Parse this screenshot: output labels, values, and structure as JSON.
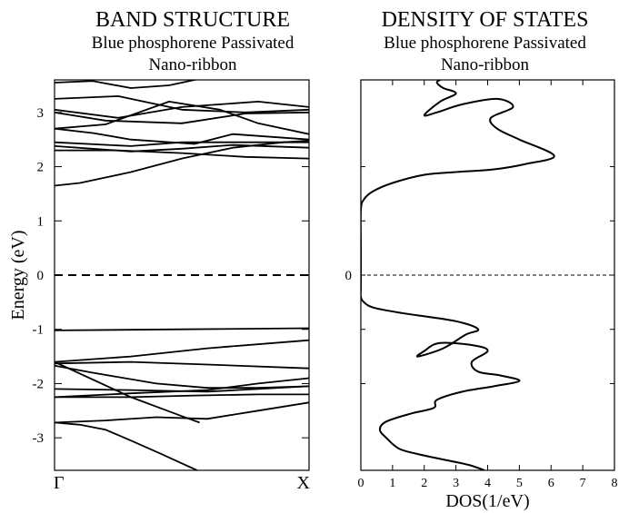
{
  "chart_data": [
    {
      "type": "line",
      "title": "BAND STRUCTURE",
      "subtitle_line1": "Blue phosphorene Passivated",
      "subtitle_line2": "Nano-ribbon",
      "xlabel": "",
      "ylabel": "Energy (eV)",
      "xlim": [
        0,
        1
      ],
      "ylim": [
        -3.6,
        3.6
      ],
      "x_tick_labels": [
        {
          "x": 0,
          "label": "Γ"
        },
        {
          "x": 1,
          "label": "X"
        }
      ],
      "y_tick_labels": [
        "-3",
        "-2",
        "-1",
        "0",
        "1",
        "2",
        "3"
      ],
      "fermi_level": 0,
      "series": [
        {
          "x": [
            0,
            0.1,
            0.3,
            0.5,
            0.7,
            0.9,
            1
          ],
          "y": [
            1.65,
            1.7,
            1.9,
            2.15,
            2.35,
            2.45,
            2.48
          ]
        },
        {
          "x": [
            0,
            0.25,
            0.5,
            0.75,
            1
          ],
          "y": [
            2.3,
            2.3,
            2.25,
            2.18,
            2.15
          ]
        },
        {
          "x": [
            0,
            0.3,
            0.5,
            0.7,
            1
          ],
          "y": [
            2.38,
            2.28,
            2.33,
            2.4,
            2.35
          ]
        },
        {
          "x": [
            0,
            0.3,
            0.5,
            0.7,
            1
          ],
          "y": [
            2.45,
            2.38,
            2.45,
            2.45,
            2.45
          ]
        },
        {
          "x": [
            0,
            0.15,
            0.3,
            0.55,
            0.7,
            1
          ],
          "y": [
            2.7,
            2.62,
            2.5,
            2.42,
            2.6,
            2.5
          ]
        },
        {
          "x": [
            0,
            0.2,
            0.45,
            0.65,
            0.8,
            1
          ],
          "y": [
            2.7,
            2.78,
            3.2,
            3.05,
            2.8,
            2.6
          ]
        },
        {
          "x": [
            0,
            0.2,
            0.5,
            0.75,
            1
          ],
          "y": [
            3.0,
            2.85,
            2.8,
            2.98,
            3.0
          ]
        },
        {
          "x": [
            0,
            0.25,
            0.5,
            0.8,
            1
          ],
          "y": [
            3.05,
            2.9,
            3.1,
            3.2,
            3.1
          ]
        },
        {
          "x": [
            0,
            0.25,
            0.5,
            0.75,
            1
          ],
          "y": [
            3.25,
            3.3,
            3.05,
            3.0,
            3.05
          ]
        },
        {
          "x": [
            0,
            0.15,
            0.3,
            0.45,
            0.6
          ],
          "y": [
            3.55,
            3.58,
            3.45,
            3.5,
            3.65
          ]
        },
        {
          "x": [
            0,
            0.5,
            1
          ],
          "y": [
            -1.02,
            -1.0,
            -0.98
          ]
        },
        {
          "x": [
            0,
            0.3,
            0.6,
            1
          ],
          "y": [
            -1.6,
            -1.5,
            -1.35,
            -1.2
          ]
        },
        {
          "x": [
            0,
            0.3,
            0.6,
            1
          ],
          "y": [
            -1.63,
            -1.6,
            -1.65,
            -1.72
          ]
        },
        {
          "x": [
            0,
            0.15,
            0.4,
            0.6,
            0.8,
            1
          ],
          "y": [
            -1.67,
            -1.8,
            -2.0,
            -2.08,
            -2.08,
            -2.05
          ]
        },
        {
          "x": [
            0,
            0.3,
            0.6,
            0.8,
            1
          ],
          "y": [
            -2.1,
            -2.12,
            -2.15,
            -2.1,
            -2.05
          ]
        },
        {
          "x": [
            0,
            0.3,
            0.6,
            0.8,
            1
          ],
          "y": [
            -2.25,
            -2.18,
            -2.12,
            -2.0,
            -1.9
          ]
        },
        {
          "x": [
            0,
            0.3,
            0.55,
            0.8,
            1
          ],
          "y": [
            -2.25,
            -2.25,
            -2.22,
            -2.2,
            -2.2
          ]
        },
        {
          "x": [
            0,
            0.2,
            0.4,
            0.6,
            0.8,
            1
          ],
          "y": [
            -2.72,
            -2.68,
            -2.62,
            -2.65,
            -2.5,
            -2.35
          ]
        },
        {
          "x": [
            0,
            0.1,
            0.2,
            0.3,
            0.42,
            0.56
          ],
          "y": [
            -2.72,
            -2.76,
            -2.85,
            -3.05,
            -3.3,
            -3.6
          ]
        },
        {
          "x": [
            0,
            0.3,
            0.5,
            0.57
          ],
          "y": [
            -1.6,
            -2.25,
            -2.6,
            -2.72
          ]
        }
      ]
    },
    {
      "type": "line",
      "title": "DENSITY OF STATES",
      "subtitle_line1": "Blue phosphorene Passivated",
      "subtitle_line2": "Nano-ribbon",
      "xlabel": "DOS(1/eV)",
      "ylabel": "",
      "xlim": [
        0,
        8
      ],
      "ylim": [
        -3.6,
        3.6
      ],
      "x_ticks": [
        0,
        1,
        2,
        3,
        4,
        5,
        6,
        7,
        8
      ],
      "y_tick_labels": [
        "0"
      ],
      "fermi_level": 0,
      "series": [
        {
          "x": [
            3.9,
            3.4,
            2.6,
            1.8,
            1.2,
            0.8,
            0.6,
            0.8,
            1.6,
            2.3,
            2.4,
            3.2,
            4.2,
            5.0,
            4.4,
            3.7,
            3.5,
            4.0,
            3.6,
            2.5,
            2.0,
            1.8,
            2.6,
            3.3,
            3.7,
            3.0,
            1.3,
            0.4,
            0.1,
            0,
            0,
            0,
            0,
            0.1,
            0.4,
            1.0,
            2.0,
            3.0,
            4.2,
            5.2,
            6.1,
            5.0,
            4.3,
            4.1,
            4.8,
            4.3,
            3.2,
            2.4,
            2.0,
            2.5,
            3.0,
            2.6,
            2.4,
            2.5
          ],
          "y": [
            -3.6,
            -3.5,
            -3.4,
            -3.3,
            -3.2,
            -3.0,
            -2.85,
            -2.7,
            -2.55,
            -2.45,
            -2.3,
            -2.15,
            -2.05,
            -1.95,
            -1.85,
            -1.78,
            -1.6,
            -1.4,
            -1.3,
            -1.25,
            -1.4,
            -1.5,
            -1.35,
            -1.1,
            -1.0,
            -0.85,
            -0.7,
            -0.6,
            -0.5,
            -0.4,
            -0.2,
            0.5,
            1.2,
            1.4,
            1.55,
            1.7,
            1.85,
            1.9,
            1.95,
            2.05,
            2.2,
            2.5,
            2.7,
            2.9,
            3.1,
            3.25,
            3.15,
            3.0,
            2.95,
            3.2,
            3.35,
            3.45,
            3.55,
            3.6
          ]
        }
      ]
    }
  ]
}
